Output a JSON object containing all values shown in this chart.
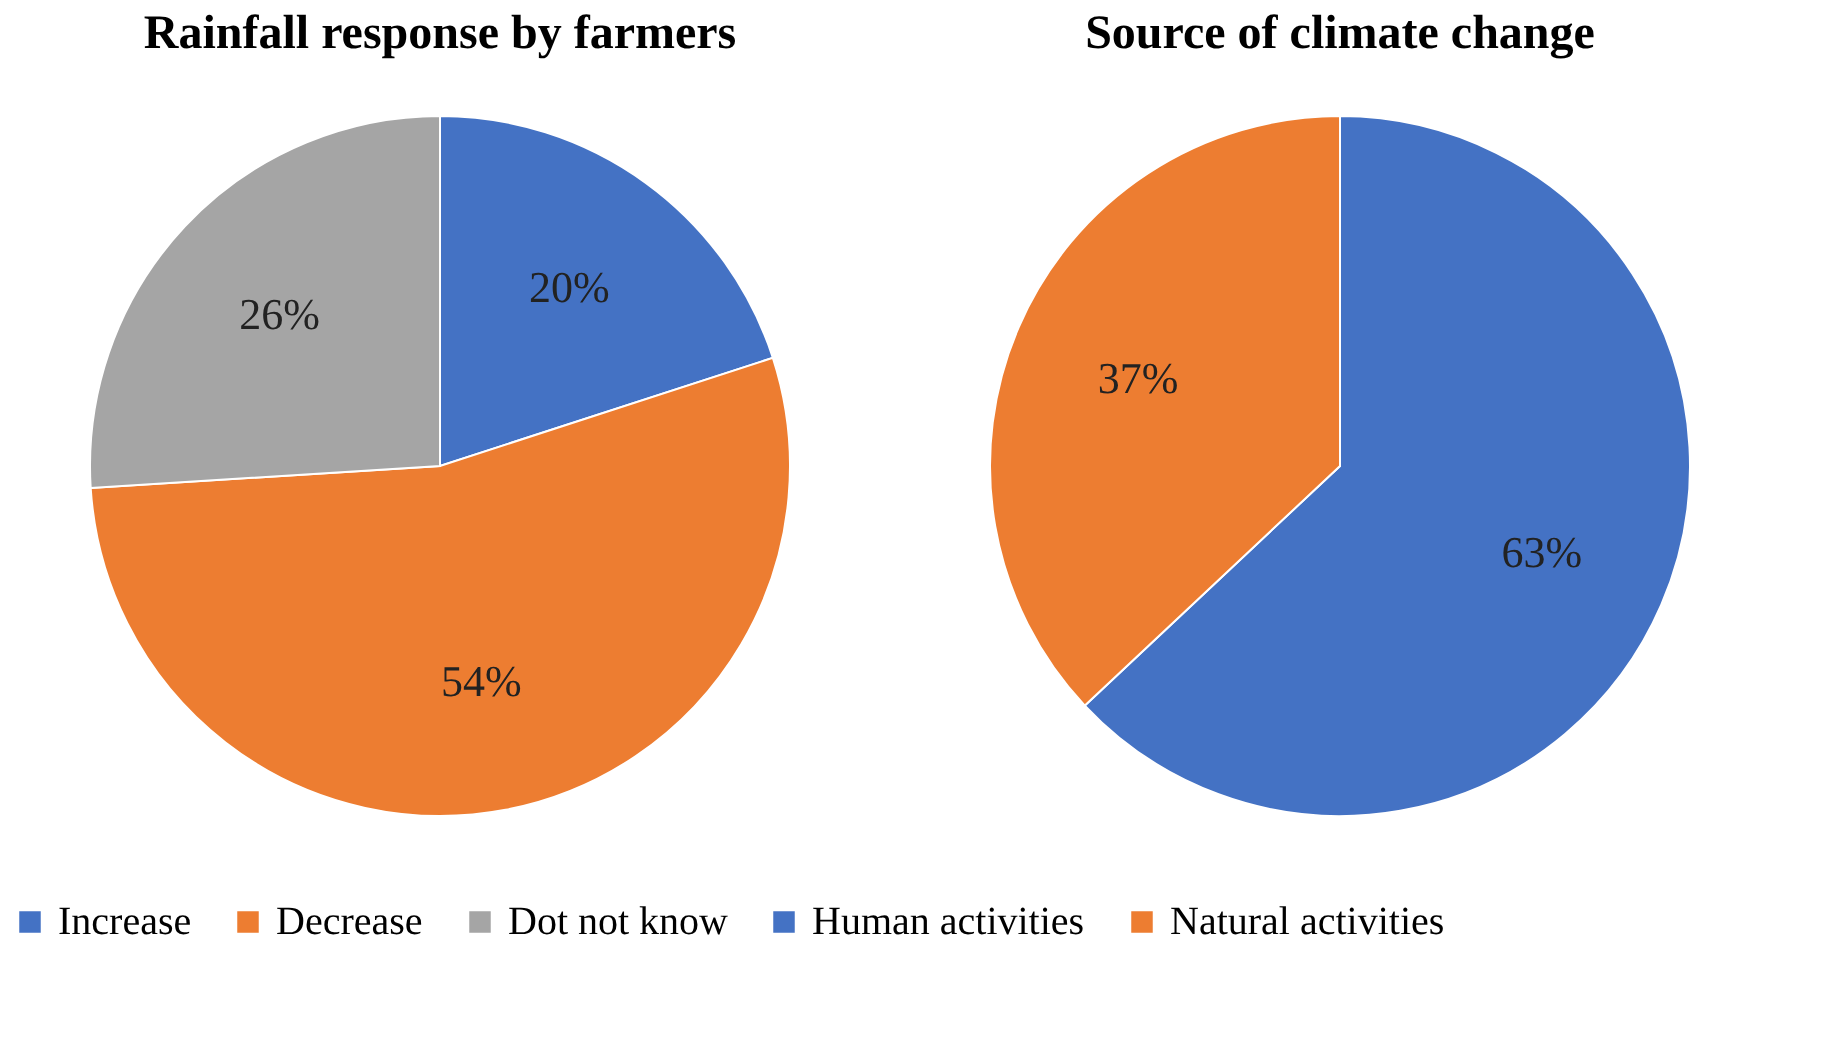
{
  "chart_data": [
    {
      "type": "pie",
      "title": "Rainfall response by farmers",
      "categories": [
        "Increase",
        "Decrease",
        "Dot not know"
      ],
      "values": [
        20,
        54,
        26
      ],
      "colors": [
        "#4472c4",
        "#ed7d31",
        "#a5a5a5"
      ],
      "value_labels": [
        "20%",
        "54%",
        "26%"
      ],
      "legend": "bottom"
    },
    {
      "type": "pie",
      "title": "Source of climate change",
      "categories": [
        "Human activities",
        "Natural activities"
      ],
      "values": [
        63,
        37
      ],
      "colors": [
        "#4472c4",
        "#ed7d31"
      ],
      "value_labels": [
        "63%",
        "37%"
      ],
      "legend": "bottom"
    }
  ]
}
